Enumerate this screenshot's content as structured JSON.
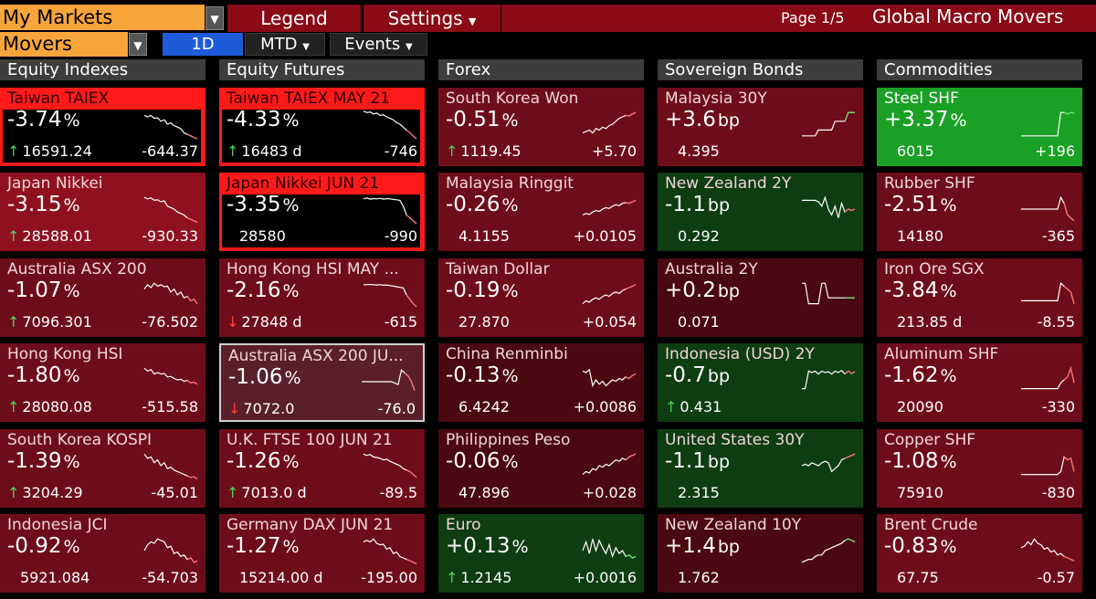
{
  "topbar": {
    "dropdown": "My Markets",
    "tabs": [
      "Legend",
      "Settings"
    ],
    "page_info": "Page 1/5",
    "title": "Global Macro Movers"
  },
  "subbar": {
    "dropdown": "Movers",
    "periods": [
      "1D",
      "MTD",
      "Events"
    ],
    "active_period": "1D"
  },
  "colors": {
    "dark_red": "#4a0810",
    "mid_red": "#6e0d1a",
    "bright_red": "#8f1120",
    "alert_red": "#ff1a1a",
    "dark_green": "#0e3d12",
    "bright_green": "#1aa025",
    "accent_orange": "#f7a53a",
    "active_blue": "#1e5bd8"
  },
  "columns": [
    {
      "title": "Equity Indexes",
      "tiles": [
        {
          "name": "Taiwan TAIEX",
          "chg": "-3.74",
          "unit": "%",
          "last": "16591.24",
          "arrow": "up",
          "net": "-644.37",
          "style": "alert",
          "spark": [
            0.8,
            0.75,
            0.8,
            0.7,
            0.72,
            0.6,
            0.65,
            0.5,
            0.55,
            0.45,
            0.4,
            0.35,
            0.2,
            0.15,
            0.1,
            0.05,
            0
          ]
        },
        {
          "name": "Japan Nikkei",
          "chg": "-3.15",
          "unit": "%",
          "last": "28588.01",
          "arrow": "up",
          "net": "-930.33",
          "style": "bright",
          "spark": [
            0.9,
            0.85,
            0.88,
            0.8,
            0.82,
            0.75,
            0.78,
            0.6,
            0.55,
            0.5,
            0.4,
            0.35,
            0.3,
            0.2,
            0.15,
            0.1,
            0.05
          ]
        },
        {
          "name": "Australia ASX 200",
          "chg": "-1.07",
          "unit": "%",
          "last": "7096.301",
          "arrow": "up",
          "net": "-76.502",
          "style": "mid",
          "spark": [
            0.7,
            0.85,
            0.75,
            0.9,
            0.8,
            0.85,
            0.78,
            0.8,
            0.6,
            0.7,
            0.5,
            0.6,
            0.4,
            0.45,
            0.3,
            0.35,
            0.2
          ]
        },
        {
          "name": "Hong Kong HSI",
          "chg": "-1.80",
          "unit": "%",
          "last": "28080.08",
          "arrow": "up",
          "net": "-515.58",
          "style": "mid",
          "spark": [
            0.9,
            0.8,
            0.85,
            0.7,
            0.75,
            0.7,
            0.72,
            0.6,
            0.62,
            0.55,
            0.5,
            0.52,
            0.45,
            0.48,
            0.4,
            0.42,
            0.35
          ]
        },
        {
          "name": "South Korea KOSPI",
          "chg": "-1.39",
          "unit": "%",
          "last": "3204.29",
          "arrow": "up",
          "net": "-45.01",
          "style": "mid",
          "spark": [
            0.9,
            0.75,
            0.8,
            0.6,
            0.7,
            0.5,
            0.6,
            0.4,
            0.45,
            0.35,
            0.3,
            0.25,
            0.2,
            0.15,
            0.1,
            0.12,
            0.05
          ]
        },
        {
          "name": "Indonesia JCI",
          "chg": "-0.92",
          "unit": "%",
          "last": "5921.084",
          "arrow": "none",
          "net": "-54.703",
          "style": "mid",
          "spark": [
            0.5,
            0.7,
            0.8,
            0.75,
            0.9,
            0.85,
            0.8,
            0.6,
            0.65,
            0.4,
            0.45,
            0.3,
            0.35,
            0.2,
            0.25,
            0.1,
            0.15
          ]
        }
      ]
    },
    {
      "title": "Equity Futures",
      "tiles": [
        {
          "name": "Taiwan TAIEX MAY 21",
          "chg": "-4.33",
          "unit": "%",
          "last": "16483 d",
          "arrow": "up",
          "net": "-746",
          "style": "alert",
          "spark": [
            0.95,
            0.9,
            0.92,
            0.85,
            0.88,
            0.8,
            0.82,
            0.75,
            0.7,
            0.65,
            0.55,
            0.5,
            0.4,
            0.3,
            0.2,
            0.1,
            0
          ]
        },
        {
          "name": "Japan Nikkei JUN 21",
          "chg": "-3.35",
          "unit": "%",
          "last": "28580",
          "arrow": "none",
          "net": "-990",
          "style": "alert",
          "spark": [
            0.85,
            0.88,
            0.84,
            0.86,
            0.85,
            0.87,
            0.84,
            0.86,
            0.85,
            0.83,
            0.82,
            0.8,
            0.6,
            0.3,
            0.2,
            0.1,
            0
          ]
        },
        {
          "name": "Hong Kong HSI MAY ...",
          "chg": "-2.16",
          "unit": "%",
          "last": "27848 d",
          "arrow": "down",
          "net": "-615",
          "style": "mid",
          "spark": [
            0.85,
            0.85,
            0.86,
            0.85,
            0.84,
            0.85,
            0.83,
            0.84,
            0.82,
            0.8,
            0.78,
            0.76,
            0.74,
            0.5,
            0.35,
            0.2,
            0.1
          ]
        },
        {
          "name": "Australia ASX 200 JU...",
          "chg": "-1.06",
          "unit": "%",
          "last": "7072.0",
          "arrow": "down",
          "net": "-76.0",
          "style": "sel",
          "spark": [
            0.5,
            0.5,
            0.5,
            0.5,
            0.5,
            0.5,
            0.5,
            0.5,
            0.5,
            0.5,
            0.45,
            0.4,
            0.9,
            0.8,
            0.7,
            0.5,
            0.2
          ]
        },
        {
          "name": "U.K. FTSE 100 JUN 21",
          "chg": "-1.26",
          "unit": "%",
          "last": "7013.0 d",
          "arrow": "up",
          "net": "-89.5",
          "style": "mid",
          "spark": [
            0.9,
            0.85,
            0.88,
            0.8,
            0.78,
            0.75,
            0.7,
            0.72,
            0.65,
            0.6,
            0.55,
            0.5,
            0.4,
            0.35,
            0.3,
            0.2,
            0.1
          ]
        },
        {
          "name": "Germany DAX JUN 21",
          "chg": "-1.27",
          "unit": "%",
          "last": "15214.00 d",
          "arrow": "none",
          "net": "-195.00",
          "style": "mid",
          "spark": [
            0.8,
            0.85,
            0.8,
            0.9,
            0.75,
            0.7,
            0.72,
            0.55,
            0.6,
            0.4,
            0.45,
            0.3,
            0.25,
            0.2,
            0.15,
            0.1,
            0.05
          ]
        }
      ]
    },
    {
      "title": "Forex",
      "tiles": [
        {
          "name": "South Korea Won",
          "chg": "-0.51",
          "unit": "%",
          "last": "1119.45",
          "arrow": "up",
          "net": "+5.70",
          "style": "mid",
          "spark": [
            0.2,
            0.25,
            0.3,
            0.2,
            0.35,
            0.3,
            0.4,
            0.35,
            0.45,
            0.5,
            0.6,
            0.7,
            0.75,
            0.8,
            0.78,
            0.85,
            0.9
          ]
        },
        {
          "name": "Malaysia Ringgit",
          "chg": "-0.26",
          "unit": "%",
          "last": "4.1155",
          "arrow": "none",
          "net": "+0.0105",
          "style": "mid",
          "spark": [
            0.3,
            0.35,
            0.32,
            0.4,
            0.45,
            0.42,
            0.5,
            0.55,
            0.52,
            0.6,
            0.65,
            0.62,
            0.7,
            0.72,
            0.7,
            0.75,
            0.8
          ]
        },
        {
          "name": "Taiwan Dollar",
          "chg": "-0.19",
          "unit": "%",
          "last": "27.870",
          "arrow": "none",
          "net": "+0.054",
          "style": "mid",
          "spark": [
            0.2,
            0.3,
            0.25,
            0.35,
            0.4,
            0.35,
            0.45,
            0.5,
            0.45,
            0.55,
            0.6,
            0.55,
            0.65,
            0.7,
            0.75,
            0.8,
            0.85
          ]
        },
        {
          "name": "China Renminbi",
          "chg": "-0.13",
          "unit": "%",
          "last": "6.4242",
          "arrow": "none",
          "net": "+0.0086",
          "style": "dark",
          "spark": [
            0.8,
            0.75,
            0.85,
            0.3,
            0.5,
            0.35,
            0.45,
            0.3,
            0.4,
            0.5,
            0.45,
            0.55,
            0.5,
            0.6,
            0.55,
            0.65,
            0.7
          ]
        },
        {
          "name": "Philippines Peso",
          "chg": "-0.06",
          "unit": "%",
          "last": "47.896",
          "arrow": "none",
          "net": "+0.028",
          "style": "dark",
          "spark": [
            0.2,
            0.3,
            0.25,
            0.4,
            0.35,
            0.5,
            0.45,
            0.55,
            0.5,
            0.6,
            0.7,
            0.65,
            0.75,
            0.7,
            0.8,
            0.85,
            0.9
          ]
        },
        {
          "name": "Euro",
          "chg": "+0.13",
          "unit": "%",
          "last": "1.2145",
          "arrow": "up",
          "net": "+0.0016",
          "style": "dkgreen",
          "spark": [
            0.5,
            0.8,
            0.4,
            0.9,
            0.5,
            0.85,
            0.6,
            0.4,
            0.7,
            0.3,
            0.6,
            0.4,
            0.5,
            0.3,
            0.35,
            0.25,
            0.3
          ]
        }
      ]
    },
    {
      "title": "Sovereign Bonds",
      "tiles": [
        {
          "name": "Malaysia 30Y",
          "chg": "+3.6",
          "unit": "bp",
          "last": "4.395",
          "arrow": "none",
          "net": "",
          "style": "mid",
          "spark": [
            0.1,
            0.1,
            0.1,
            0.1,
            0.1,
            0.3,
            0.3,
            0.3,
            0.3,
            0.3,
            0.6,
            0.6,
            0.6,
            0.6,
            0.9,
            0.9,
            0.9
          ]
        },
        {
          "name": "New Zealand 2Y",
          "chg": "-1.1",
          "unit": "bp",
          "last": "0.292",
          "arrow": "none",
          "net": "",
          "style": "dkgreen",
          "spark": [
            0.8,
            0.8,
            0.8,
            0.8,
            0.8,
            0.75,
            0.6,
            0.9,
            0.5,
            0.3,
            0.6,
            0.2,
            0.7,
            0.4,
            0.5,
            0.45,
            0.5
          ]
        },
        {
          "name": "Australia 2Y",
          "chg": "+0.2",
          "unit": "bp",
          "last": "0.071",
          "arrow": "none",
          "net": "",
          "style": "dark",
          "spark": [
            0.9,
            0.9,
            0.2,
            0.2,
            0.2,
            0.2,
            0.9,
            0.9,
            0.4,
            0.4,
            0.4,
            0.4,
            0.4,
            0.4,
            0.4,
            0.4,
            0.4
          ]
        },
        {
          "name": "Indonesia (USD) 2Y",
          "chg": "-0.7",
          "unit": "bp",
          "last": "0.431",
          "arrow": "up",
          "net": "",
          "style": "dkgreen",
          "spark": [
            0.2,
            0.2,
            0.8,
            0.75,
            0.8,
            0.7,
            0.8,
            0.75,
            0.78,
            0.7,
            0.8,
            0.75,
            0.82,
            0.7,
            0.8,
            0.72,
            0.78
          ]
        },
        {
          "name": "United States 30Y",
          "chg": "-1.1",
          "unit": "bp",
          "last": "2.315",
          "arrow": "none",
          "net": "",
          "style": "dkgreen",
          "spark": [
            0.5,
            0.55,
            0.5,
            0.6,
            0.55,
            0.5,
            0.6,
            0.65,
            0.6,
            0.3,
            0.4,
            0.5,
            0.7,
            0.75,
            0.8,
            0.85,
            0.9
          ]
        },
        {
          "name": "New Zealand 10Y",
          "chg": "+1.4",
          "unit": "bp",
          "last": "1.762",
          "arrow": "none",
          "net": "",
          "style": "dark",
          "spark": [
            0.1,
            0.15,
            0.2,
            0.2,
            0.3,
            0.35,
            0.35,
            0.5,
            0.55,
            0.6,
            0.65,
            0.7,
            0.75,
            0.85,
            0.9,
            0.85,
            0.8
          ]
        }
      ]
    },
    {
      "title": "Commodities",
      "tiles": [
        {
          "name": "Steel SHF",
          "chg": "+3.37",
          "unit": "%",
          "last": "6015",
          "arrow": "none",
          "net": "+196",
          "style": "green",
          "spark": [
            0.1,
            0.1,
            0.1,
            0.1,
            0.1,
            0.1,
            0.1,
            0.1,
            0.1,
            0.1,
            0.1,
            0.1,
            0.9,
            0.9,
            0.85,
            0.9,
            0.88
          ]
        },
        {
          "name": "Rubber SHF",
          "chg": "-2.51",
          "unit": "%",
          "last": "14180",
          "arrow": "none",
          "net": "-365",
          "style": "mid",
          "spark": [
            0.5,
            0.5,
            0.5,
            0.5,
            0.5,
            0.5,
            0.5,
            0.5,
            0.5,
            0.5,
            0.5,
            0.5,
            0.9,
            0.7,
            0.3,
            0.2,
            0.1
          ]
        },
        {
          "name": "Iron Ore SGX",
          "chg": "-3.84",
          "unit": "%",
          "last": "213.85 d",
          "arrow": "none",
          "net": "-8.55",
          "style": "mid",
          "spark": [
            0.3,
            0.3,
            0.3,
            0.3,
            0.3,
            0.3,
            0.3,
            0.3,
            0.3,
            0.3,
            0.3,
            0.3,
            0.9,
            0.8,
            0.7,
            0.6,
            0.2
          ]
        },
        {
          "name": "Aluminum SHF",
          "chg": "-1.62",
          "unit": "%",
          "last": "20090",
          "arrow": "none",
          "net": "-330",
          "style": "mid",
          "spark": [
            0.2,
            0.2,
            0.2,
            0.2,
            0.2,
            0.2,
            0.2,
            0.2,
            0.2,
            0.2,
            0.2,
            0.2,
            0.4,
            0.5,
            0.6,
            0.9,
            0.4
          ]
        },
        {
          "name": "Copper SHF",
          "chg": "-1.08",
          "unit": "%",
          "last": "75910",
          "arrow": "none",
          "net": "-830",
          "style": "mid",
          "spark": [
            0.2,
            0.2,
            0.2,
            0.2,
            0.2,
            0.2,
            0.2,
            0.2,
            0.2,
            0.2,
            0.2,
            0.2,
            0.3,
            0.8,
            0.7,
            0.75,
            0.3
          ]
        },
        {
          "name": "Brent Crude",
          "chg": "-0.83",
          "unit": "%",
          "last": "67.75",
          "arrow": "none",
          "net": "-0.57",
          "style": "mid",
          "spark": [
            0.6,
            0.65,
            0.8,
            0.7,
            0.9,
            0.75,
            0.7,
            0.55,
            0.6,
            0.45,
            0.5,
            0.35,
            0.4,
            0.3,
            0.25,
            0.2,
            0.15
          ]
        }
      ]
    }
  ]
}
